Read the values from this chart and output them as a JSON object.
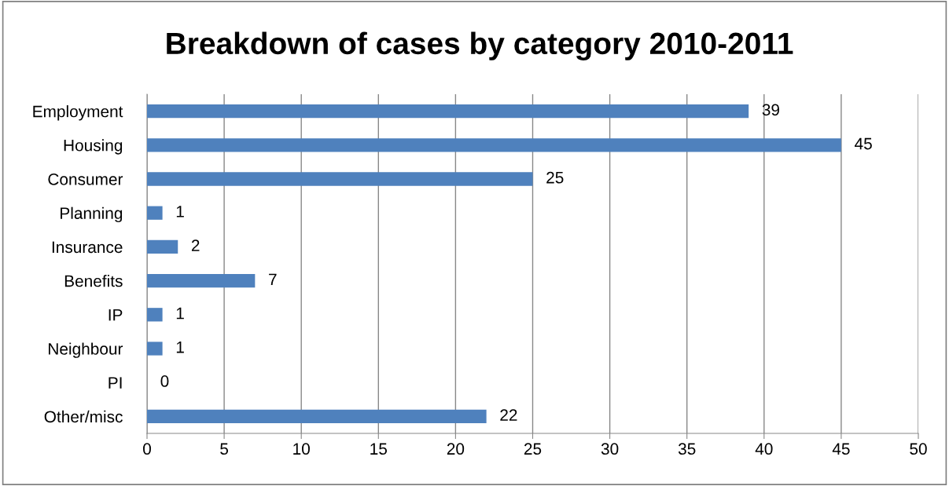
{
  "chart_data": {
    "type": "bar",
    "orientation": "horizontal",
    "title": "Breakdown of cases by category 2010-2011",
    "categories": [
      "Employment",
      "Housing",
      "Consumer",
      "Planning",
      "Insurance",
      "Benefits",
      "IP",
      "Neighbour",
      "PI",
      "Other/misc"
    ],
    "values": [
      39,
      45,
      25,
      1,
      2,
      7,
      1,
      1,
      0,
      22
    ],
    "color": "#4f81bd",
    "xlim": [
      0,
      50
    ],
    "xticks": [
      0,
      5,
      10,
      15,
      20,
      25,
      30,
      35,
      40,
      45,
      50
    ],
    "grid": "x",
    "data_labels": true,
    "legend": false
  }
}
